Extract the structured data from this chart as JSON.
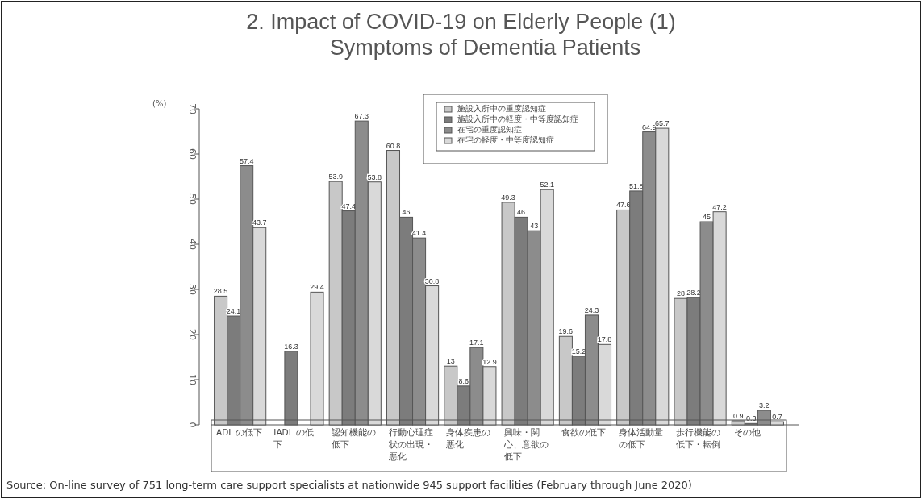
{
  "chart_data": {
    "type": "bar",
    "title": "2. Impact of COVID-19 on Elderly People (1)",
    "subtitle": "Symptoms of Dementia Patients",
    "ylabel": "(%)",
    "categories": [
      "ADL の低下",
      "IADL の低下",
      "認知機能の低下",
      "行動心理症状の出現・悪化",
      "身体疾患の悪化",
      "興味・関心、意欲の低下",
      "食欲の低下",
      "身体活動量の低下",
      "歩行機能の低下・転倒",
      "その他"
    ],
    "series": [
      {
        "name": "施設入所中の重度認知症",
        "color": "#c8c8c8",
        "values": [
          28.5,
          null,
          53.9,
          60.8,
          13,
          49.3,
          19.6,
          47.6,
          28,
          0.9
        ]
      },
      {
        "name": "施設入所中の軽度・中等度認知症",
        "color": "#7c7c7c",
        "values": [
          24.1,
          16.3,
          47.4,
          46,
          8.6,
          46,
          15.2,
          51.8,
          28.2,
          0.3
        ]
      },
      {
        "name": "在宅の重度認知症",
        "color": "#8c8c8c",
        "values": [
          57.4,
          null,
          67.3,
          41.4,
          17.1,
          43,
          24.3,
          64.9,
          45,
          3.2
        ]
      },
      {
        "name": "在宅の軽度・中等度認知症",
        "color": "#d9d9d9",
        "values": [
          43.7,
          29.4,
          53.8,
          30.8,
          12.9,
          52.1,
          17.8,
          65.7,
          47.2,
          0.7
        ]
      }
    ],
    "ylim": [
      0,
      70
    ],
    "yticks": [
      0,
      10,
      20,
      30,
      40,
      50,
      60,
      70
    ],
    "data_labels": true,
    "legend": "top",
    "annotations": [
      "Source: On-line survey of 751 long-term care support specialists at nationwide 945 support facilities (February through June 2020)"
    ]
  }
}
